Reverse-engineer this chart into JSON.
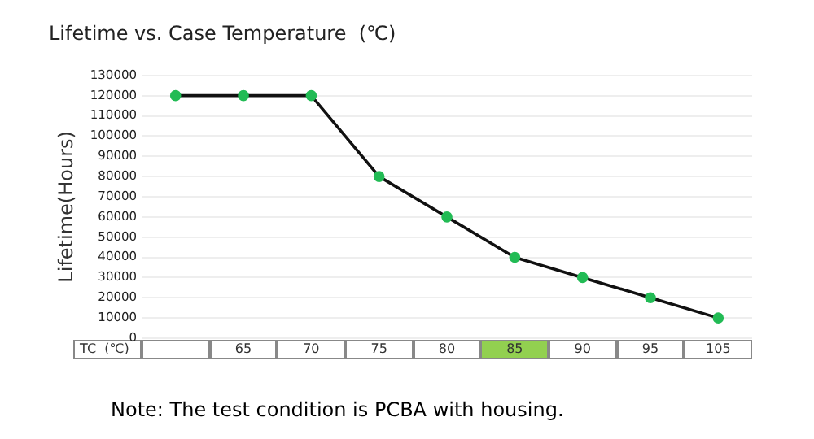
{
  "chart_data": {
    "type": "line",
    "title": "Lifetime vs. Case Temperature  (℃)",
    "xlabel": "TC  (℃)",
    "ylabel": "Lifetime(Hours)",
    "categories": [
      null,
      "65",
      "70",
      "75",
      "80",
      "85",
      "90",
      "95",
      "105"
    ],
    "series": [
      {
        "color": "#111111",
        "colors": [
          "#22bb55",
          "#22bb55",
          "#22bb55",
          "#22bb55",
          "#22bb55",
          "#22bb55",
          "#22bb55",
          "#22bb55",
          "#22bb55"
        ],
        "values": [
          120000,
          120000,
          120000,
          80000,
          60000,
          40000,
          30000,
          20000,
          10000
        ]
      }
    ],
    "ylim": [
      0,
      130000
    ],
    "yticks": [
      0,
      10000,
      20000,
      30000,
      40000,
      50000,
      60000,
      70000,
      80000,
      90000,
      100000,
      110000,
      120000,
      130000
    ],
    "grid": "y",
    "legend": false,
    "marker": "circle",
    "line_style": "solid",
    "annotations": [
      "Note: The test condition is PCBA with housing."
    ]
  }
}
